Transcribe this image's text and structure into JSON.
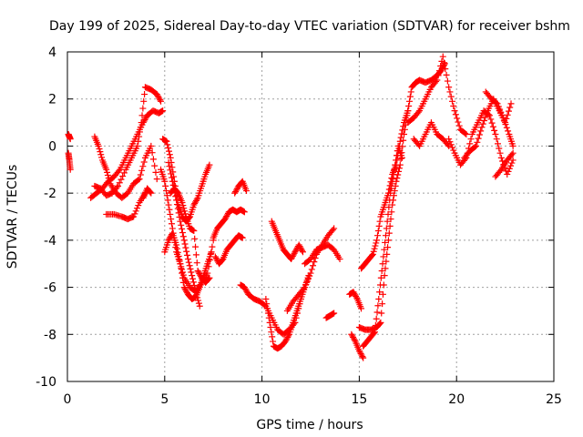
{
  "chart_data": {
    "type": "scatter",
    "title": "Day 199 of 2025, Sidereal Day-to-day VTEC variation (SDTVAR) for receiver bshm",
    "xlabel": "GPS time / hours",
    "ylabel": "SDTVAR / TECUs",
    "xlim": [
      0,
      25
    ],
    "ylim": [
      -10,
      4
    ],
    "xticks": [
      0,
      5,
      10,
      15,
      20,
      25
    ],
    "yticks": [
      -10,
      -8,
      -6,
      -4,
      -2,
      0,
      2,
      4
    ],
    "xtick_labels": [
      "0",
      "5",
      "10",
      "15",
      "20",
      "25"
    ],
    "ytick_labels": [
      "-10",
      "-8",
      "-6",
      "-4",
      "-2",
      "0",
      "2",
      "4"
    ],
    "grid": true,
    "marker": "plus",
    "color": "#ff0000",
    "traces": [
      {
        "x": [
          0.05,
          0.1,
          0.15
        ],
        "y": [
          0.5,
          0.4,
          0.3
        ]
      },
      {
        "x": [
          0.05,
          0.1,
          0.15
        ],
        "y": [
          -0.3,
          -0.6,
          -1.0
        ]
      },
      {
        "x": [
          1.2,
          1.5,
          1.8,
          2.1,
          2.4,
          2.7,
          3.0,
          3.3,
          3.6,
          3.9,
          4.1,
          4.4,
          4.7,
          4.9
        ],
        "y": [
          -2.2,
          -2.0,
          -1.8,
          -1.5,
          -1.3,
          -1.0,
          -0.5,
          0.0,
          0.5,
          1.0,
          1.3,
          1.5,
          1.4,
          1.5
        ]
      },
      {
        "x": [
          1.4,
          1.7,
          2.0,
          2.3,
          2.6,
          3.0,
          3.3,
          3.6,
          3.8,
          4.0,
          4.3,
          4.6,
          4.8
        ],
        "y": [
          -1.7,
          -1.8,
          -2.1,
          -2.0,
          -1.7,
          -1.0,
          -0.5,
          0.0,
          1.0,
          2.5,
          2.4,
          2.2,
          1.9
        ]
      },
      {
        "x": [
          1.4,
          1.6,
          1.8,
          2.0,
          2.2,
          2.5,
          2.8,
          3.1,
          3.4,
          3.7,
          4.0,
          4.3,
          4.6
        ],
        "y": [
          0.4,
          0.0,
          -0.6,
          -1.0,
          -1.6,
          -2.0,
          -2.2,
          -2.0,
          -1.6,
          -1.4,
          -0.5,
          0.0,
          -1.4
        ]
      },
      {
        "x": [
          2.0,
          2.4,
          2.8,
          3.1,
          3.4,
          3.7,
          4.0
        ],
        "y": [
          -2.9,
          -2.9,
          -3.0,
          -3.1,
          -3.0,
          -2.4,
          -2.0
        ]
      },
      {
        "x": [
          3.9,
          4.1,
          4.3
        ],
        "y": [
          -2.2,
          -1.8,
          -2.0
        ]
      },
      {
        "x": [
          4.9,
          5.1,
          5.3,
          5.5,
          5.7,
          5.9,
          6.1,
          6.3,
          6.5,
          6.7,
          6.9,
          7.1,
          7.3
        ],
        "y": [
          0.3,
          0.2,
          -0.5,
          -1.5,
          -2.5,
          -3.0,
          -3.2,
          -3.0,
          -2.5,
          -2.2,
          -1.7,
          -1.2,
          -0.8
        ]
      },
      {
        "x": [
          4.8,
          5.0,
          5.2,
          5.4,
          5.6,
          5.8,
          6.0,
          6.2,
          6.4,
          6.6,
          6.8,
          7.0,
          7.2,
          7.4
        ],
        "y": [
          -1.0,
          -1.5,
          -2.5,
          -3.5,
          -4.5,
          -5.0,
          -6.0,
          -6.3,
          -6.5,
          -6.4,
          -6.0,
          -5.5,
          -5.0,
          -4.5
        ]
      },
      {
        "x": [
          5.0,
          5.2,
          5.4,
          5.6,
          5.8,
          6.0,
          6.3,
          6.6,
          6.9,
          7.2,
          7.5
        ],
        "y": [
          -4.5,
          -4.0,
          -3.7,
          -4.2,
          -5.0,
          -5.6,
          -6.0,
          -6.2,
          -5.8,
          -5.4,
          -4.0
        ]
      },
      {
        "x": [
          5.3,
          5.5,
          5.7,
          5.9,
          6.1,
          6.3,
          6.5,
          6.7,
          6.9,
          7.1,
          7.3
        ],
        "y": [
          -2.0,
          -1.8,
          -2.0,
          -2.4,
          -3.0,
          -3.5,
          -3.6,
          -5.3,
          -5.6,
          -5.8,
          -5.6
        ]
      },
      {
        "x": [
          5.2,
          5.4,
          5.6,
          5.8,
          6.0,
          6.2,
          6.4,
          6.6,
          6.8
        ],
        "y": [
          -0.7,
          -1.5,
          -2.3,
          -3.2,
          -4.0,
          -4.8,
          -5.5,
          -6.2,
          -6.8
        ]
      },
      {
        "x": [
          7.5,
          7.7,
          7.9,
          8.1,
          8.3,
          8.5,
          8.7,
          8.9,
          9.1
        ],
        "y": [
          -3.9,
          -3.5,
          -3.3,
          -3.1,
          -2.8,
          -2.7,
          -2.8,
          -2.7,
          -2.8
        ]
      },
      {
        "x": [
          7.6,
          7.8,
          8.0,
          8.2,
          8.4,
          8.6,
          8.8,
          9.0
        ],
        "y": [
          -4.7,
          -5.0,
          -4.8,
          -4.4,
          -4.2,
          -4.0,
          -3.8,
          -3.9
        ]
      },
      {
        "x": [
          8.6,
          8.8,
          9.0,
          9.2
        ],
        "y": [
          -2.0,
          -1.7,
          -1.5,
          -1.9
        ]
      },
      {
        "x": [
          8.9,
          9.1,
          9.3,
          9.6,
          9.9,
          10.2,
          10.5,
          10.8,
          11.1,
          11.4,
          11.7,
          12.0
        ],
        "y": [
          -5.9,
          -6.0,
          -6.3,
          -6.5,
          -6.6,
          -6.8,
          -7.3,
          -7.8,
          -8.0,
          -7.8,
          -7.5,
          -6.5
        ]
      },
      {
        "x": [
          10.2,
          10.4,
          10.6,
          10.8,
          11.0,
          11.2,
          11.4,
          11.6,
          11.8,
          12.0,
          12.2,
          12.4
        ],
        "y": [
          -6.5,
          -7.5,
          -8.5,
          -8.6,
          -8.5,
          -8.3,
          -8.0,
          -7.5,
          -7.0,
          -6.5,
          -6.0,
          -5.5
        ]
      },
      {
        "x": [
          10.5,
          10.7,
          10.9,
          11.1,
          11.3,
          11.5,
          11.7,
          11.9,
          12.1
        ],
        "y": [
          -3.2,
          -3.6,
          -4.0,
          -4.4,
          -4.6,
          -4.8,
          -4.5,
          -4.2,
          -4.5
        ]
      },
      {
        "x": [
          11.3,
          11.6,
          11.9,
          12.2,
          12.5,
          12.8,
          13.1,
          13.4,
          13.7
        ],
        "y": [
          -7.0,
          -6.6,
          -6.3,
          -6.0,
          -5.4,
          -4.6,
          -4.2,
          -3.8,
          -3.5
        ]
      },
      {
        "x": [
          12.2,
          12.5,
          12.8,
          13.1,
          13.4,
          13.7,
          14.0
        ],
        "y": [
          -5.0,
          -4.8,
          -4.4,
          -4.3,
          -4.2,
          -4.4,
          -4.8
        ]
      },
      {
        "x": [
          13.3,
          13.5,
          13.7
        ],
        "y": [
          -7.3,
          -7.2,
          -7.1
        ]
      },
      {
        "x": [
          14.5,
          14.7,
          14.9,
          15.1
        ],
        "y": [
          -6.3,
          -6.2,
          -6.5,
          -6.9
        ]
      },
      {
        "x": [
          14.6,
          14.8,
          15.0,
          15.2
        ],
        "y": [
          -8.0,
          -8.3,
          -8.7,
          -9.0
        ]
      },
      {
        "x": [
          15.0,
          15.3,
          15.6,
          15.9,
          16.1,
          16.3,
          16.5,
          16.7,
          16.9,
          17.1,
          17.3,
          17.5,
          17.7,
          17.9,
          18.1,
          18.4,
          18.7,
          19.0,
          19.2,
          19.4
        ],
        "y": [
          -7.7,
          -7.8,
          -7.8,
          -7.7,
          -7.5,
          -5.5,
          -4.0,
          -2.5,
          -1.5,
          -0.8,
          0.5,
          1.5,
          2.5,
          2.7,
          2.8,
          2.7,
          2.8,
          3.0,
          3.2,
          3.5
        ]
      },
      {
        "x": [
          15.1,
          15.3,
          15.5,
          15.7,
          15.9,
          16.1,
          16.3,
          16.5,
          16.7,
          16.9,
          17.1,
          17.3,
          17.5
        ],
        "y": [
          -5.2,
          -5.0,
          -4.8,
          -4.6,
          -4.0,
          -3.0,
          -2.5,
          -2.0,
          -1.2,
          -0.8,
          0.2,
          1.0,
          1.5
        ]
      },
      {
        "x": [
          15.2,
          15.4,
          15.6,
          15.8,
          16.0,
          16.2,
          16.4,
          16.6,
          16.8,
          17.0,
          17.2
        ],
        "y": [
          -8.5,
          -8.3,
          -8.1,
          -7.9,
          -6.5,
          -5.0,
          -3.5,
          -2.0,
          -1.0,
          0.0,
          -0.5
        ]
      },
      {
        "x": [
          17.5,
          17.8,
          18.1,
          18.4,
          18.7,
          19.0,
          19.3,
          19.6,
          19.9,
          20.2,
          20.5
        ],
        "y": [
          1.0,
          1.2,
          1.5,
          2.0,
          2.5,
          2.8,
          3.8,
          2.5,
          1.5,
          0.7,
          0.5
        ]
      },
      {
        "x": [
          17.8,
          18.1,
          18.4,
          18.7,
          19.0,
          19.3,
          19.6
        ],
        "y": [
          0.3,
          0.0,
          0.5,
          1.0,
          0.5,
          0.3,
          0.0
        ]
      },
      {
        "x": [
          19.6,
          19.9,
          20.2,
          20.5,
          20.8,
          21.1,
          21.4,
          21.7,
          22.0,
          22.3,
          22.6,
          22.9
        ],
        "y": [
          0.3,
          -0.3,
          -0.8,
          -0.5,
          0.5,
          1.0,
          1.5,
          1.3,
          0.5,
          -0.5,
          -1.2,
          -0.6
        ]
      },
      {
        "x": [
          20.4,
          20.7,
          21.0,
          21.3,
          21.6,
          21.9,
          22.2,
          22.5,
          22.8
        ],
        "y": [
          -0.5,
          -0.2,
          0.0,
          0.8,
          1.5,
          2.0,
          1.5,
          1.0,
          1.8
        ]
      },
      {
        "x": [
          21.5,
          21.8,
          22.1,
          22.4,
          22.7,
          22.9
        ],
        "y": [
          2.3,
          2.0,
          1.8,
          1.2,
          0.5,
          0.0
        ]
      },
      {
        "x": [
          22.0,
          22.3,
          22.6,
          22.9
        ],
        "y": [
          -1.3,
          -1.0,
          -0.6,
          -0.3
        ]
      }
    ]
  }
}
